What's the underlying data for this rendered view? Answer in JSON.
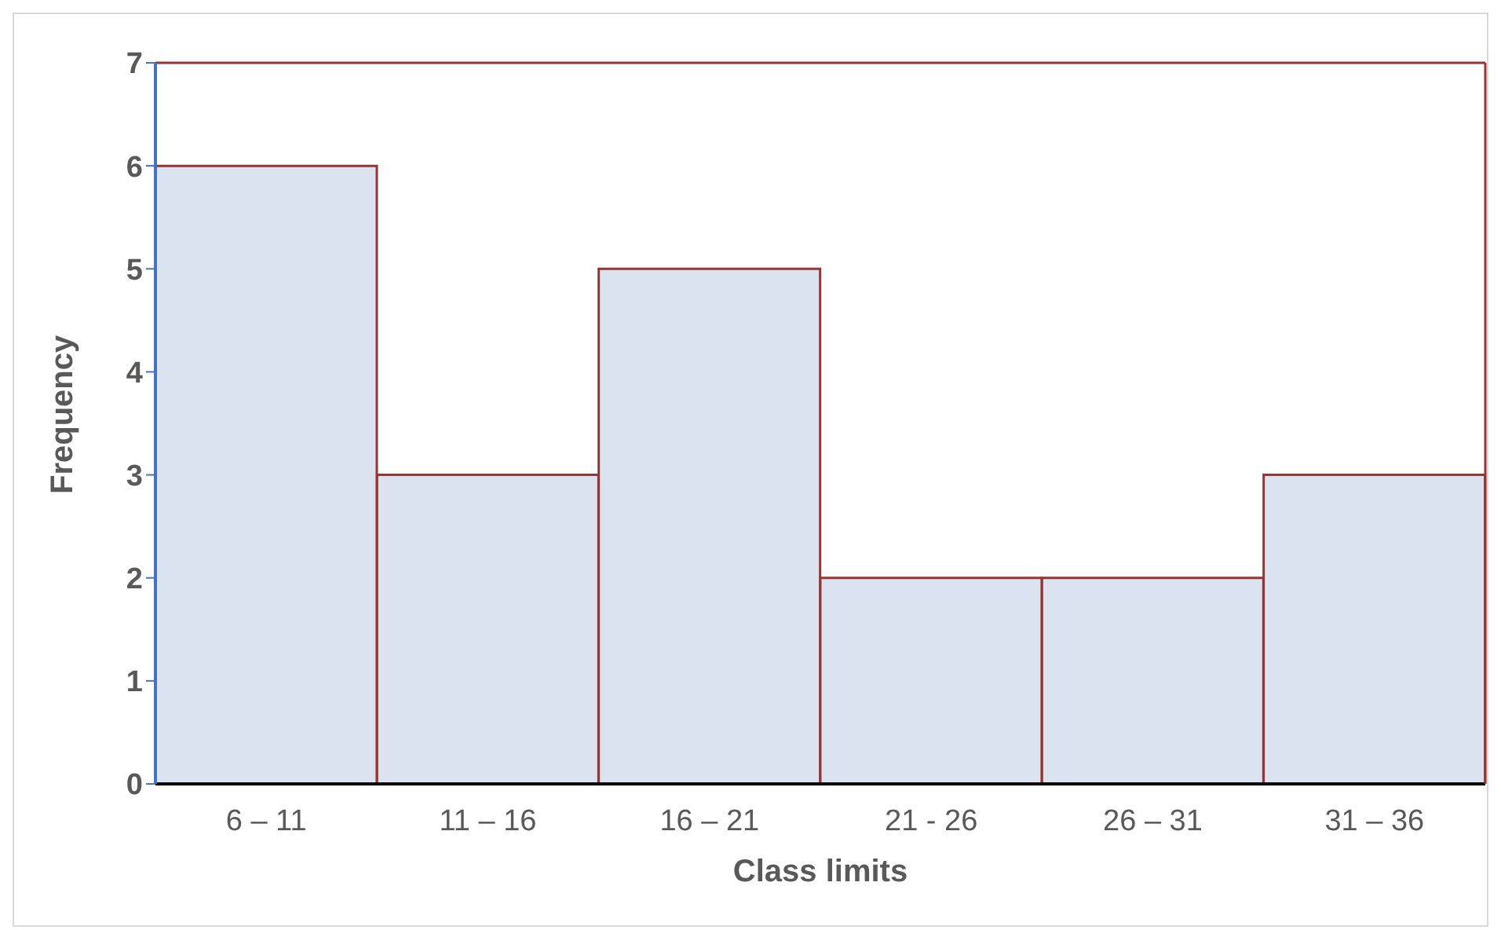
{
  "chart_data": {
    "type": "bar",
    "xlabel": "Class limits",
    "ylabel": "Frequency",
    "categories": [
      "6 – 11",
      "11 – 16",
      "16 – 21",
      "21 - 26",
      "26 – 31",
      "31 – 36"
    ],
    "series": [
      {
        "color": "#dce3f0",
        "values": [
          6,
          3,
          5,
          2,
          2,
          3
        ]
      }
    ],
    "ylim": [
      0,
      7
    ],
    "yticks": [
      0,
      1,
      2,
      3,
      4,
      5,
      6,
      7
    ],
    "grid": false,
    "legend": false
  }
}
